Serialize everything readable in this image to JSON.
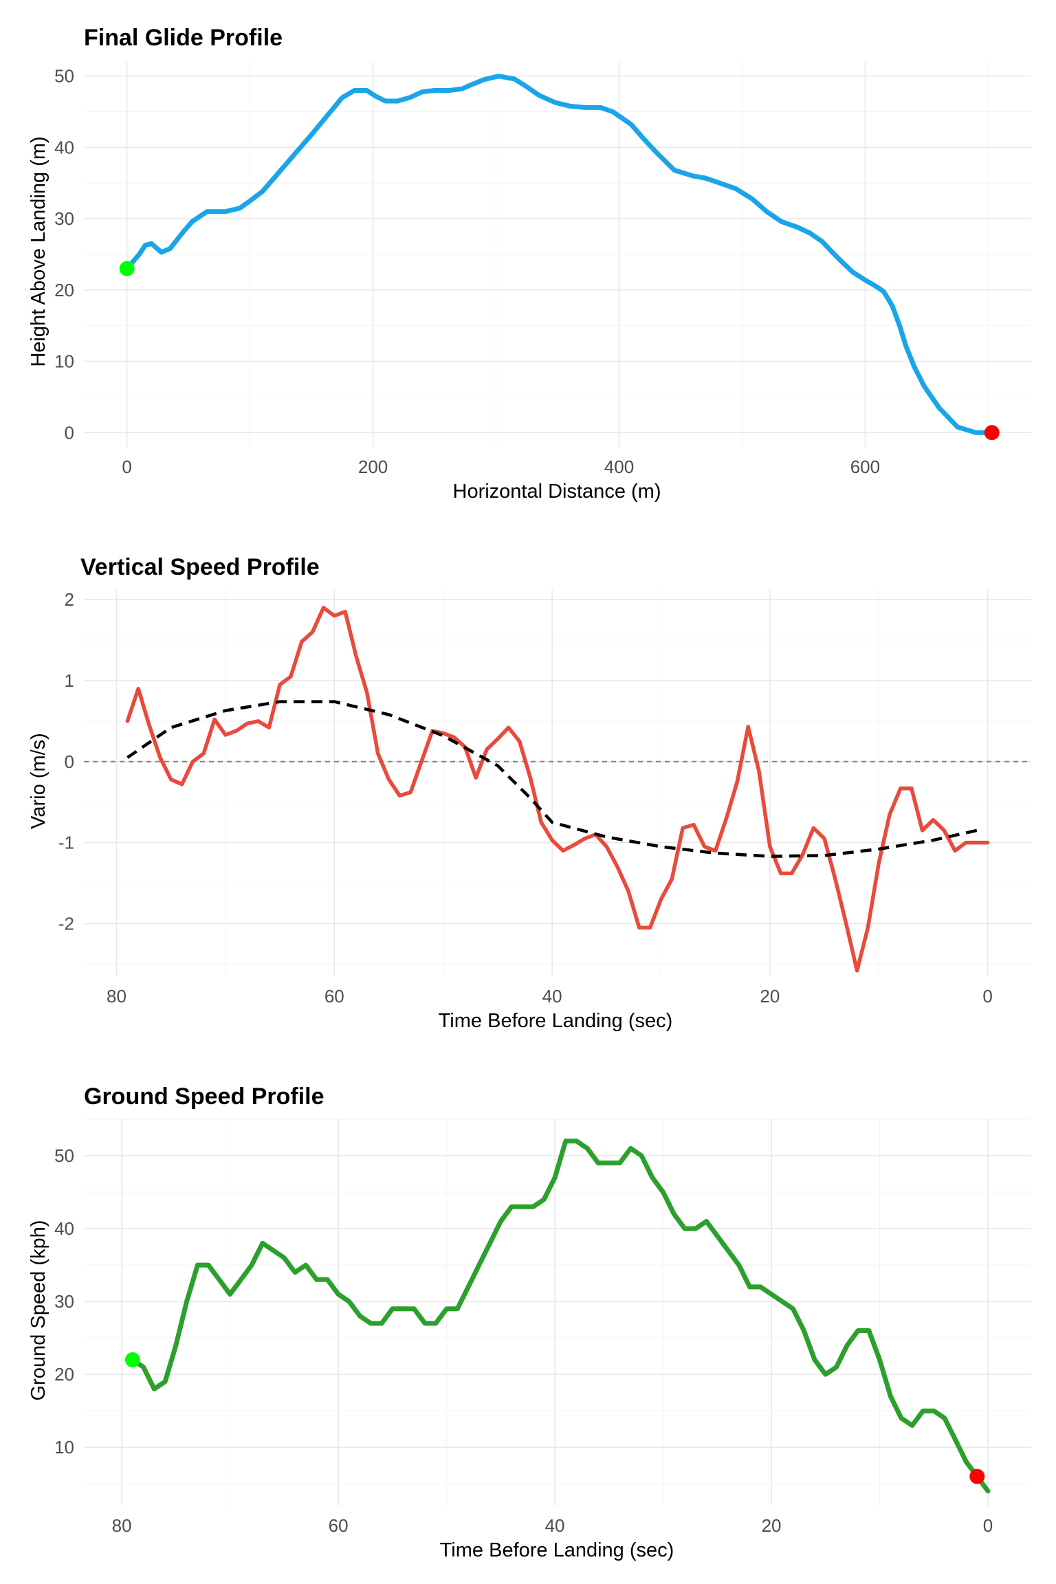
{
  "chart_data": [
    {
      "type": "line",
      "title": "Final Glide Profile",
      "xlabel": "Horizontal Distance (m)",
      "ylabel": "Height Above Landing (m)",
      "xlim": [
        -35,
        735
      ],
      "ylim": [
        -2,
        52
      ],
      "xticks": [
        0,
        200,
        400,
        600
      ],
      "yticks": [
        0,
        10,
        20,
        30,
        40,
        50
      ],
      "xreverse": false,
      "grid": true,
      "legend": "none",
      "series": [
        {
          "color": "#1AA5EA",
          "x": [
            0,
            10,
            15,
            20,
            28,
            35,
            45,
            53,
            65,
            80,
            92,
            100,
            110,
            122,
            135,
            150,
            163,
            175,
            185,
            195,
            202,
            210,
            220,
            230,
            240,
            250,
            262,
            272,
            280,
            290,
            302,
            315,
            325,
            335,
            348,
            360,
            372,
            385,
            395,
            410,
            420,
            432,
            445,
            460,
            470,
            482,
            495,
            508,
            520,
            532,
            545,
            555,
            565,
            575,
            582,
            590,
            600,
            608,
            615,
            622,
            628,
            633,
            640,
            648,
            660,
            675,
            690,
            697,
            703
          ],
          "y": [
            23,
            25,
            26.3,
            26.5,
            25.3,
            25.8,
            28,
            29.6,
            31,
            31,
            31.5,
            32.5,
            33.8,
            36.2,
            38.8,
            41.8,
            44.5,
            47,
            48,
            48,
            47.2,
            46.5,
            46.5,
            47,
            47.8,
            48,
            48,
            48.2,
            48.8,
            49.5,
            50,
            49.6,
            48.5,
            47.3,
            46.3,
            45.8,
            45.6,
            45.6,
            45,
            43.2,
            41.2,
            39,
            36.8,
            36,
            35.7,
            35,
            34.2,
            32.8,
            31,
            29.6,
            28.8,
            28,
            26.8,
            25,
            23.8,
            22.5,
            21.4,
            20.6,
            19.8,
            17.8,
            15,
            12.2,
            9.2,
            6.5,
            3.5,
            0.8,
            0,
            0,
            0
          ]
        }
      ],
      "start_marker": {
        "x": 0,
        "y": 23,
        "color": "#00FF00"
      },
      "end_marker": {
        "x": 703,
        "y": 0,
        "color": "#FF0000"
      }
    },
    {
      "type": "line",
      "title": "Vertical Speed Profile",
      "xlabel": "Time Before Landing (sec)",
      "ylabel": "Vario (m/s)",
      "xlim": [
        -4,
        83
      ],
      "ylim": [
        -2.65,
        2.12
      ],
      "xticks": [
        80,
        60,
        40,
        20,
        0
      ],
      "yticks": [
        -2,
        -1,
        0,
        1,
        2
      ],
      "xreverse": true,
      "grid": true,
      "legend": "none",
      "reference_line": {
        "y": 0,
        "color": "#808080",
        "style": "dashed"
      },
      "series": [
        {
          "color": "#E84A3C",
          "x": [
            79,
            78,
            77,
            76,
            75,
            74,
            73,
            72,
            71,
            70,
            69,
            68,
            67,
            66,
            65,
            64,
            63,
            62,
            61,
            60,
            59,
            58,
            57,
            56,
            55,
            54,
            53,
            52,
            51,
            50,
            49,
            48,
            47,
            46,
            45,
            44,
            43,
            42,
            41,
            40,
            39,
            38,
            37,
            36,
            35,
            34,
            33,
            32,
            31,
            30,
            29,
            28,
            27,
            26,
            25,
            24,
            23,
            22,
            21,
            20,
            19,
            18,
            17,
            16,
            15,
            14,
            13,
            12,
            11,
            10,
            9,
            8,
            7,
            6,
            5,
            4,
            3,
            2,
            1,
            0
          ],
          "y": [
            0.5,
            0.9,
            0.45,
            0.05,
            -0.22,
            -0.28,
            0,
            0.1,
            0.52,
            0.33,
            0.38,
            0.47,
            0.5,
            0.42,
            0.95,
            1.05,
            1.48,
            1.6,
            1.9,
            1.8,
            1.85,
            1.3,
            0.85,
            0.1,
            -0.22,
            -0.42,
            -0.38,
            0,
            0.38,
            0.35,
            0.3,
            0.18,
            -0.2,
            0.15,
            0.28,
            0.42,
            0.25,
            -0.2,
            -0.75,
            -0.97,
            -1.1,
            -1.03,
            -0.95,
            -0.9,
            -1.05,
            -1.3,
            -1.6,
            -2.05,
            -2.05,
            -1.7,
            -1.45,
            -0.82,
            -0.78,
            -1.05,
            -1.1,
            -0.7,
            -0.25,
            0.43,
            -0.12,
            -1.05,
            -1.38,
            -1.38,
            -1.15,
            -0.82,
            -0.95,
            -1.45,
            -2,
            -2.58,
            -2.05,
            -1.25,
            -0.65,
            -0.33,
            -0.33,
            -0.85,
            -0.72,
            -0.85,
            -1.1,
            -1,
            -1,
            -1
          ]
        },
        {
          "color": "#000000",
          "style": "dashed",
          "x": [
            79,
            75,
            70,
            65,
            60,
            55,
            50,
            45,
            42,
            40,
            35,
            30,
            25,
            20,
            15,
            10,
            5,
            1
          ],
          "y": [
            0.05,
            0.42,
            0.63,
            0.74,
            0.74,
            0.58,
            0.32,
            -0.05,
            -0.45,
            -0.75,
            -0.93,
            -1.05,
            -1.13,
            -1.17,
            -1.16,
            -1.08,
            -0.97,
            -0.85
          ]
        }
      ]
    },
    {
      "type": "line",
      "title": "Ground Speed Profile",
      "xlabel": "Time Before Landing (sec)",
      "ylabel": "Ground Speed (kph)",
      "xlim": [
        -4,
        83.5
      ],
      "ylim": [
        2,
        55
      ],
      "xticks": [
        80,
        60,
        40,
        20,
        0
      ],
      "yticks": [
        10,
        20,
        30,
        40,
        50
      ],
      "xreverse": true,
      "grid": true,
      "legend": "none",
      "series": [
        {
          "color": "#2CA02C",
          "x": [
            79,
            78,
            77,
            76,
            75,
            74,
            73,
            72,
            71,
            70,
            69,
            68,
            67,
            66,
            65,
            64,
            63,
            62,
            61,
            60,
            59,
            58,
            57,
            56,
            55,
            54,
            53,
            52,
            51,
            50,
            49,
            48,
            47,
            46,
            45,
            44,
            43,
            42,
            41,
            40,
            39,
            38,
            37,
            36,
            35,
            34,
            33,
            32,
            31,
            30,
            29,
            28,
            27,
            26,
            25,
            24,
            23,
            22,
            21,
            20,
            19,
            18,
            17,
            16,
            15,
            14,
            13,
            12,
            11,
            10,
            9,
            8,
            7,
            6,
            5,
            4,
            3,
            2,
            1,
            0
          ],
          "y": [
            22,
            21,
            18,
            19,
            24,
            30,
            35,
            35,
            33,
            31,
            33,
            35,
            38,
            37,
            36,
            34,
            35,
            33,
            33,
            31,
            30,
            28,
            27,
            27,
            29,
            29,
            29,
            27,
            27,
            29,
            29,
            32,
            35,
            38,
            41,
            43,
            43,
            43,
            44,
            47,
            52,
            52,
            51,
            49,
            49,
            49,
            51,
            50,
            47,
            45,
            42,
            40,
            40,
            41,
            39,
            37,
            35,
            32,
            32,
            31,
            30,
            29,
            26,
            22,
            20,
            21,
            24,
            26,
            26,
            22,
            17,
            14,
            13,
            15,
            15,
            14,
            11,
            8,
            6,
            4
          ]
        }
      ],
      "start_marker": {
        "x": 79,
        "y": 22,
        "color": "#00FF00"
      },
      "end_marker": {
        "x": 1,
        "y": 6,
        "color": "#FF0000"
      }
    }
  ]
}
